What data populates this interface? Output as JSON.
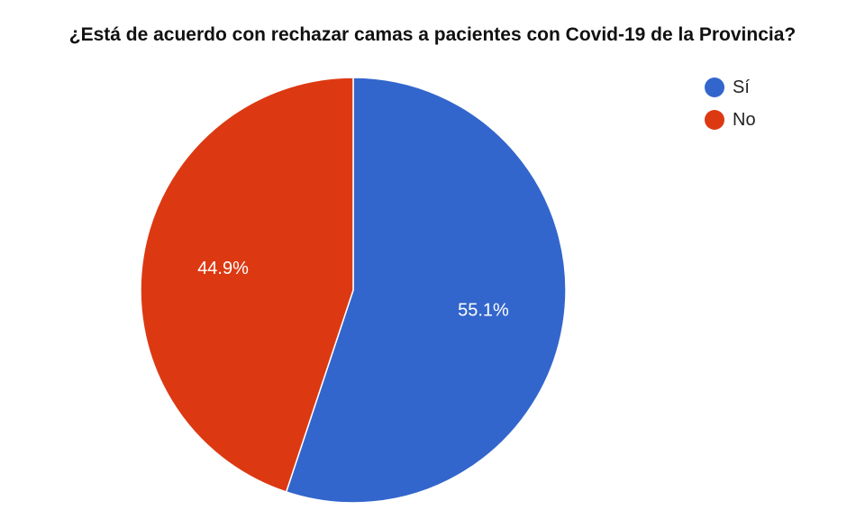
{
  "chart_data": {
    "type": "pie",
    "title": "¿Está de acuerdo con rechazar camas a pacientes con Covid-19 de la Provincia?",
    "slices": [
      {
        "label": "Sí",
        "value": 55.1,
        "display": "55.1%",
        "color": "#3366cc"
      },
      {
        "label": "No",
        "value": 44.9,
        "display": "44.9%",
        "color": "#dc3912"
      }
    ],
    "legend_position": "top-right",
    "start_angle_deg": 0,
    "direction": "clockwise"
  }
}
